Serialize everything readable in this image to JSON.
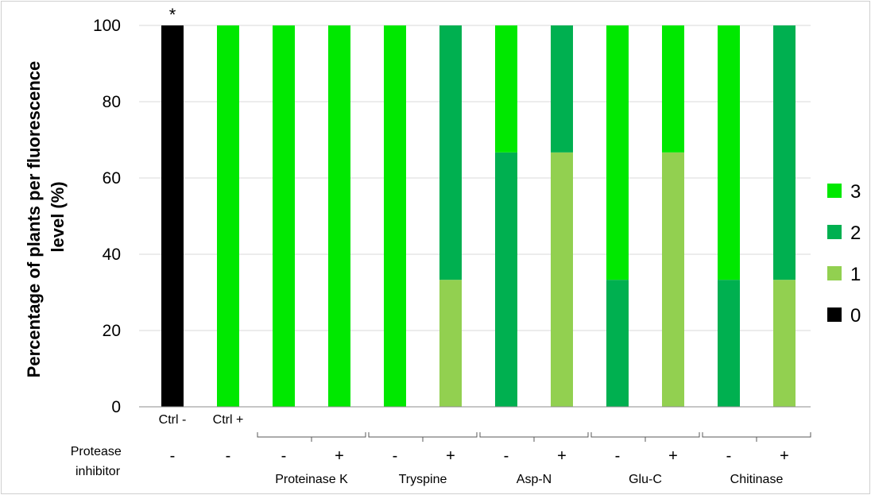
{
  "chart_data": {
    "type": "bar",
    "stacked": true,
    "title": "",
    "ylabel_lines": [
      "Percentage of plants per fluorescence",
      "level (%)"
    ],
    "ylim": [
      0,
      100
    ],
    "yticks": [
      0,
      20,
      40,
      60,
      80,
      100
    ],
    "grid": true,
    "legend_position": "right",
    "categories": [
      "Ctrl -",
      "Ctrl +",
      "Proteinase K -",
      "Proteinase K +",
      "Tryspine -",
      "Tryspine +",
      "Asp-N -",
      "Asp-N +",
      "Glu-C -",
      "Glu-C +",
      "Chitinase -",
      "Chitinase +"
    ],
    "series": [
      {
        "name": "0",
        "color": "#000000",
        "values": [
          100,
          0,
          0,
          0,
          0,
          0,
          0,
          0,
          0,
          0,
          0,
          0
        ]
      },
      {
        "name": "1",
        "color": "#92d050",
        "values": [
          0,
          0,
          0,
          0,
          0,
          33.3,
          0,
          66.7,
          0,
          66.7,
          0,
          33.3
        ]
      },
      {
        "name": "2",
        "color": "#00b050",
        "values": [
          0,
          0,
          0,
          0,
          0,
          66.7,
          66.7,
          33.3,
          33.3,
          0,
          33.3,
          66.7
        ]
      },
      {
        "name": "3",
        "color": "#00e800",
        "values": [
          0,
          100,
          100,
          100,
          100,
          0,
          33.3,
          0,
          66.7,
          33.3,
          66.7,
          0
        ]
      }
    ],
    "legend_order": [
      "3",
      "2",
      "1",
      "0"
    ],
    "control_labels": [
      "Ctrl -",
      "Ctrl +"
    ],
    "annotations": [
      {
        "text": "*",
        "category_index": 0
      }
    ],
    "row_label_lines": [
      "Protease",
      "inhibitor"
    ],
    "inhibitor_signs": [
      "-",
      "-",
      "-",
      "+",
      "-",
      "+",
      "-",
      "+",
      "-",
      "+",
      "-",
      "+"
    ],
    "groups": [
      {
        "name": "Proteinase K",
        "start": 2,
        "end": 3
      },
      {
        "name": "Tryspine",
        "start": 4,
        "end": 5
      },
      {
        "name": "Asp-N",
        "start": 6,
        "end": 7
      },
      {
        "name": "Glu-C",
        "start": 8,
        "end": 9
      },
      {
        "name": "Chitinase",
        "start": 10,
        "end": 11
      }
    ]
  }
}
